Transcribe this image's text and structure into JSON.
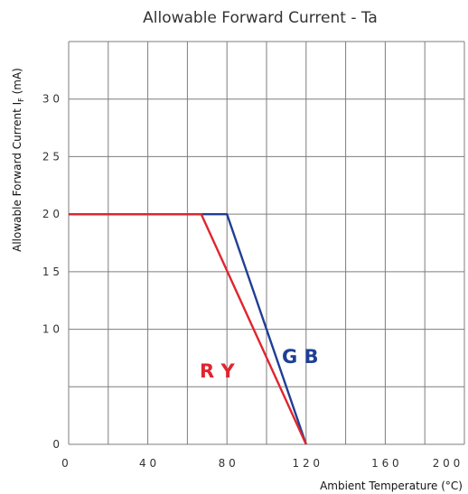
{
  "chart_data": {
    "type": "line",
    "title": "Allowable Forward Current - Ta",
    "xlabel": "Ambient Temperature (°C)",
    "ylabel_main": "Allowable Forward Current I",
    "ylabel_sub": "F",
    "ylabel_unit": " (mA)",
    "xlim": [
      0,
      200
    ],
    "ylim": [
      0,
      35
    ],
    "x_ticks": [
      0,
      40,
      80,
      120,
      160,
      200
    ],
    "x_tick_labels": [
      "0",
      "4 0",
      "8 0",
      "1 2 0",
      "1 6 0",
      "2 0 0"
    ],
    "y_ticks": [
      0,
      10,
      15,
      20,
      25,
      30
    ],
    "y_tick_labels": [
      "0",
      "1 0",
      "1 5",
      "2 0",
      "2 5",
      "3 0"
    ],
    "grid": true,
    "series": [
      {
        "name": "R Y",
        "color": "#e0252f",
        "x": [
          0,
          67,
          120
        ],
        "y": [
          20,
          20,
          0
        ]
      },
      {
        "name": "G B",
        "color": "#1f3f95",
        "x": [
          0,
          80,
          120
        ],
        "y": [
          20,
          20,
          0
        ]
      }
    ]
  }
}
